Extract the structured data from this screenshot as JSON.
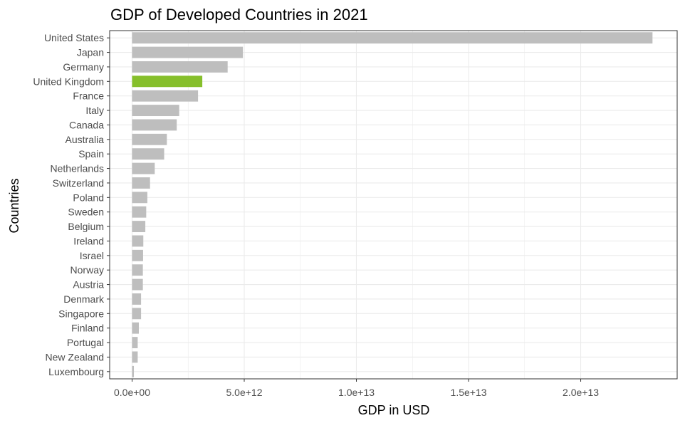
{
  "chart_data": {
    "type": "bar",
    "orientation": "horizontal",
    "title": "GDP of Developed Countries in 2021",
    "xlabel": "GDP in USD",
    "ylabel": "Countries",
    "categories": [
      "United States",
      "Japan",
      "Germany",
      "United Kingdom",
      "France",
      "Italy",
      "Canada",
      "Australia",
      "Spain",
      "Netherlands",
      "Switzerland",
      "Poland",
      "Sweden",
      "Belgium",
      "Ireland",
      "Israel",
      "Norway",
      "Austria",
      "Denmark",
      "Singapore",
      "Finland",
      "Portugal",
      "New Zealand",
      "Luxembourg"
    ],
    "values": [
      23200000000000.0,
      4940000000000.0,
      4260000000000.0,
      3130000000000.0,
      2940000000000.0,
      2100000000000.0,
      1990000000000.0,
      1550000000000.0,
      1430000000000.0,
      1010000000000.0,
      800000000000.0,
      680000000000.0,
      630000000000.0,
      590000000000.0,
      500000000000.0,
      490000000000.0,
      480000000000.0,
      480000000000.0,
      400000000000.0,
      400000000000.0,
      300000000000.0,
      250000000000.0,
      250000000000.0,
      80000000000.0
    ],
    "highlight": "United Kingdom",
    "xlim": [
      -1000000000000.0,
      24300000000000.0
    ],
    "xticks": [
      0,
      5000000000000.0,
      10000000000000.0,
      15000000000000.0,
      20000000000000.0
    ],
    "xtick_labels": [
      "0.0e+00",
      "5.0e+12",
      "1.0e+13",
      "1.5e+13",
      "2.0e+13"
    ],
    "grid": true,
    "legend": "none",
    "colors": {
      "bar": "#bebebe",
      "highlight": "#86bf2b",
      "grid": "#ebebeb",
      "panel_border": "#333333",
      "text": "#4d4d4d"
    }
  }
}
